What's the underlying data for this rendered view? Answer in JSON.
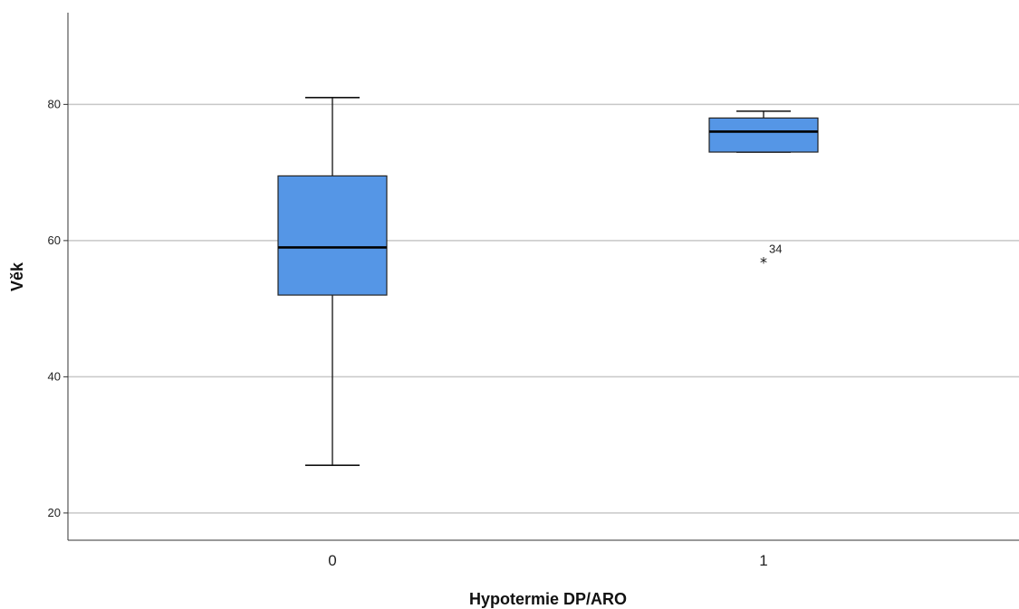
{
  "chart_data": {
    "type": "box",
    "xlabel": "Hypotermie DP/ARO",
    "ylabel": "Věk",
    "ylim": [
      16,
      94
    ],
    "yticks": [
      20,
      40,
      60,
      80
    ],
    "grid": "horizontal",
    "categories": [
      "0",
      "1"
    ],
    "box_color": "#5596e6",
    "boxes": [
      {
        "category": "0",
        "whisker_low": 27,
        "q1": 52,
        "median": 59,
        "q3": 69.5,
        "whisker_high": 81,
        "outliers": []
      },
      {
        "category": "1",
        "whisker_low": 73,
        "q1": 73,
        "median": 76,
        "q3": 78,
        "whisker_high": 79,
        "outliers": [
          {
            "value": 57,
            "label": "34",
            "marker": "*"
          }
        ]
      }
    ]
  }
}
